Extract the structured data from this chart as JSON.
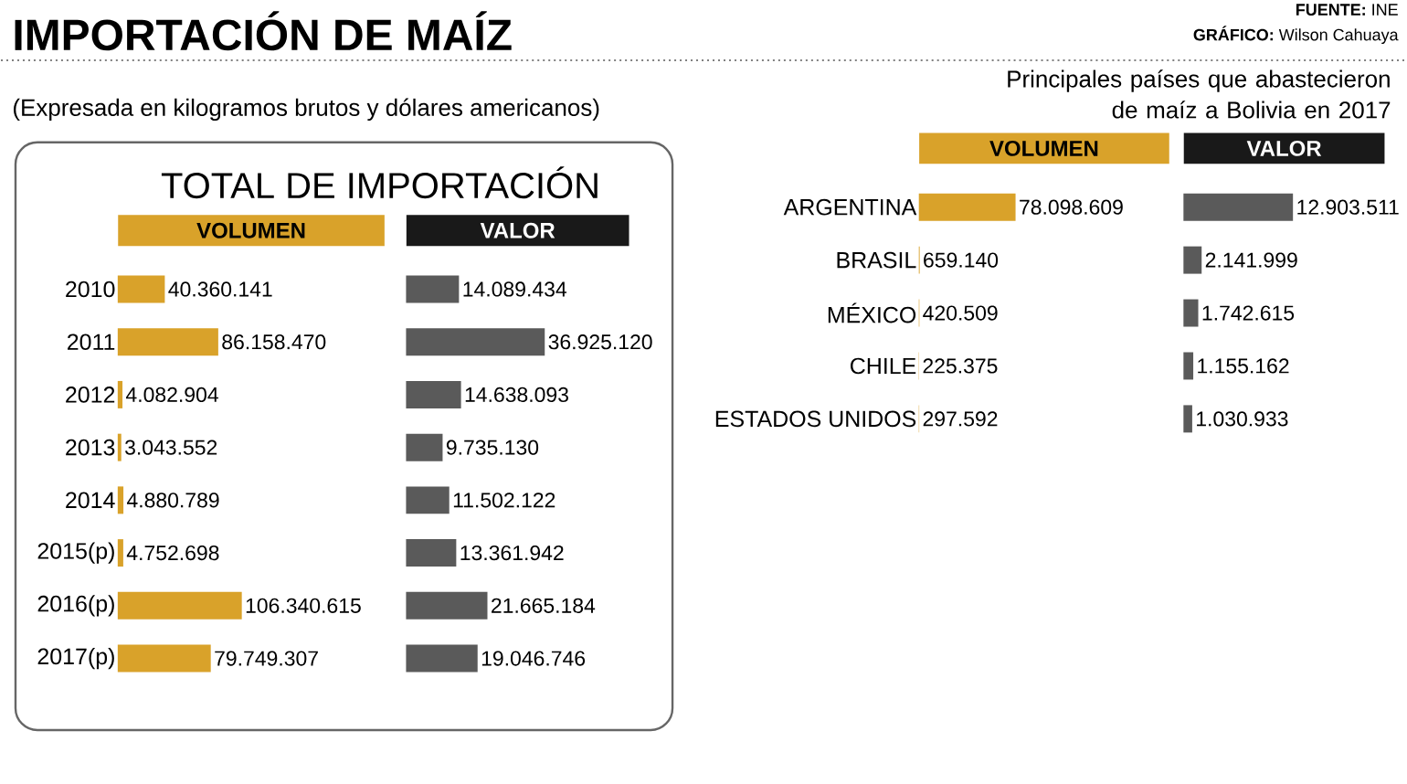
{
  "chart_data": [
    {
      "type": "other",
      "title": "IMPORTACIÓN DE MAÍZ",
      "subtitle": "(Expresada en kilogramos brutos y dólares americanos)",
      "annotations": [
        "TOTAL DE IMPORTACIÓN",
        "Principales países que abastecieron de maíz a Bolivia en 2017",
        "**FUENTE:** INE",
        "**GRÁFICO:** Wilson Cahuaya"
      ]
    },
    {
      "type": "bar",
      "orientation": "horizontal",
      "title": "VOLUMEN",
      "categories": [
        "2010",
        "2011",
        "2012",
        "2013",
        "2014",
        "2015(p)",
        "2016(p)",
        "2017(p)"
      ],
      "values": [
        40360141,
        86158470,
        4082904,
        3043552,
        4880789,
        4752698,
        106340615,
        79749307
      ],
      "value_labels": [
        "40.360.141",
        "86.158.470",
        "4.082.904",
        "3.043.552",
        "4.880.789",
        "4.752.698",
        "106.340.615",
        "79.749.307"
      ],
      "color": "#d9a22a",
      "tick_labels": "y"
    },
    {
      "type": "bar",
      "orientation": "horizontal",
      "title": "VALOR",
      "values": [
        14089434,
        36925120,
        14638093,
        9735130,
        11502122,
        13361942,
        21665184,
        19046746
      ],
      "value_labels": [
        "14.089.434",
        "36.925.120",
        "14.638.093",
        "9.735.130",
        "11.502.122",
        "13.361.942",
        "21.665.184",
        "19.046.746"
      ],
      "color": "#5a5a5a",
      "tick_labels": false
    },
    {
      "type": "bar",
      "orientation": "horizontal",
      "title": "VOLUMEN",
      "categories": [
        "ARGENTINA",
        "BRASIL",
        "MÉXICO",
        "CHILE",
        "ESTADOS UNIDOS"
      ],
      "values": [
        78098609,
        659140,
        420509,
        225375,
        297592
      ],
      "value_labels": [
        "78.098.609",
        "659.140",
        "420.509",
        "225.375",
        "297.592"
      ],
      "color": "#d9a22a",
      "tick_labels": "y"
    },
    {
      "type": "bar",
      "orientation": "horizontal",
      "title": "VALOR",
      "values": [
        12903511,
        2141999,
        1742615,
        1155162,
        1030933
      ],
      "value_labels": [
        "12.903.511",
        "2.141.999",
        "1.742.615",
        "1.155.162",
        "1.030.933"
      ],
      "color": "#5a5a5a",
      "tick_labels": false
    }
  ]
}
